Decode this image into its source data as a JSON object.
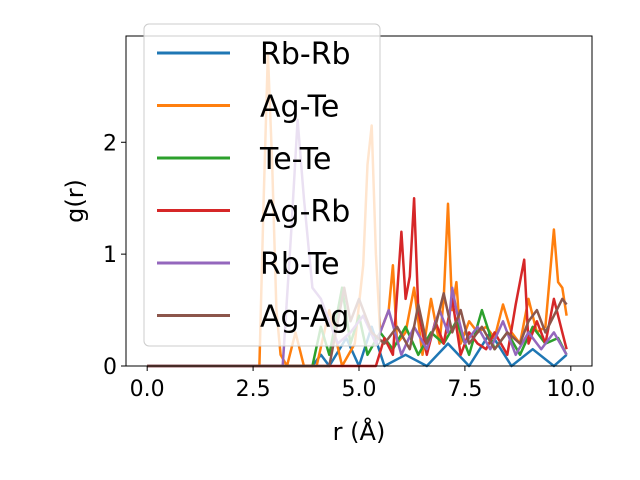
{
  "chart_data": {
    "type": "line",
    "xlabel": "r (Å)",
    "ylabel": "g(r)",
    "xlim": [
      -0.5,
      10.5
    ],
    "ylim": [
      0,
      2.95
    ],
    "xticks": [
      0.0,
      2.5,
      5.0,
      7.5,
      10.0
    ],
    "xtick_labels": [
      "0.0",
      "2.5",
      "5.0",
      "7.5",
      "10.0"
    ],
    "yticks": [
      0,
      1,
      2
    ],
    "ytick_labels": [
      "0",
      "1",
      "2"
    ],
    "grid": false,
    "legend_position": "upper-left",
    "series": [
      {
        "name": "Rb-Rb",
        "color": "#1f77b4",
        "x": [
          0,
          2.6,
          3.9,
          4.1,
          4.3,
          4.7,
          5.0,
          5.3,
          5.6,
          6.1,
          6.6,
          7.1,
          7.6,
          8.1,
          8.6,
          9.1,
          9.6,
          9.9
        ],
        "y": [
          0,
          0,
          0,
          0.1,
          0,
          0.25,
          0,
          0.35,
          0,
          0.1,
          0,
          0.2,
          0,
          0.3,
          0,
          0.15,
          0,
          0.1
        ]
      },
      {
        "name": "Ag-Te",
        "color": "#ff7f0e",
        "x": [
          0,
          2.65,
          2.75,
          2.85,
          2.95,
          3.05,
          3.15,
          3.3,
          3.5,
          3.7,
          4.0,
          4.3,
          4.6,
          4.9,
          5.1,
          5.2,
          5.3,
          5.4,
          5.5,
          5.7,
          5.8,
          5.9,
          6.1,
          6.3,
          6.5,
          6.7,
          6.9,
          7.0,
          7.1,
          7.2,
          7.3,
          7.4,
          7.6,
          7.8,
          8.0,
          8.2,
          8.4,
          8.6,
          8.8,
          9.0,
          9.2,
          9.4,
          9.6,
          9.7,
          9.8,
          9.9
        ],
        "y": [
          0,
          0,
          1.5,
          2.8,
          1.8,
          0.5,
          0.1,
          0,
          0.3,
          0,
          0,
          0.5,
          0,
          0.2,
          0.9,
          1.8,
          2.15,
          1.0,
          0.3,
          0.5,
          0.9,
          0.2,
          0.3,
          0.7,
          0.1,
          0.6,
          0.2,
          0.6,
          1.45,
          0.5,
          0.75,
          0.2,
          0.4,
          0.3,
          0.35,
          0.25,
          0.55,
          0.3,
          0.2,
          0.6,
          0.3,
          0.35,
          1.22,
          0.75,
          0.7,
          0.45
        ]
      },
      {
        "name": "Te-Te",
        "color": "#2ca02c",
        "x": [
          0,
          3.9,
          4.1,
          4.3,
          4.6,
          4.8,
          5.0,
          5.2,
          5.5,
          5.8,
          6.1,
          6.4,
          6.7,
          7.0,
          7.3,
          7.6,
          7.9,
          8.2,
          8.5,
          8.8,
          9.1,
          9.4,
          9.7,
          9.9
        ],
        "y": [
          0,
          0,
          0.35,
          0.1,
          0.7,
          0.2,
          0.45,
          0.1,
          0.3,
          0.15,
          0.35,
          0.1,
          0.3,
          0.2,
          0.4,
          0.1,
          0.5,
          0.15,
          0.3,
          0.1,
          0.35,
          0.2,
          0.25,
          0.1
        ]
      },
      {
        "name": "Ag-Rb",
        "color": "#d62728",
        "x": [
          0,
          5.4,
          5.6,
          5.8,
          6.0,
          6.1,
          6.2,
          6.3,
          6.4,
          6.6,
          6.8,
          7.0,
          7.2,
          7.4,
          7.6,
          7.8,
          8.0,
          8.2,
          8.5,
          8.7,
          8.9,
          9.0,
          9.2,
          9.4,
          9.6,
          9.8,
          9.9
        ],
        "y": [
          0,
          0,
          0.25,
          0.1,
          1.2,
          0.6,
          0.8,
          1.5,
          0.5,
          0.1,
          0.4,
          0.2,
          0.6,
          0.1,
          0.3,
          0.2,
          0.15,
          0.3,
          0.1,
          0.55,
          0.95,
          0.2,
          0.4,
          0.2,
          0.6,
          0.3,
          0.15
        ]
      },
      {
        "name": "Rb-Te",
        "color": "#9467bd",
        "x": [
          0,
          3.2,
          3.4,
          3.55,
          3.7,
          3.9,
          4.1,
          4.3,
          4.5,
          4.8,
          5.1,
          5.4,
          5.7,
          6.0,
          6.3,
          6.6,
          6.9,
          7.1,
          7.2,
          7.3,
          7.5,
          7.8,
          8.1,
          8.4,
          8.7,
          9.0,
          9.3,
          9.6,
          9.9
        ],
        "y": [
          0,
          0,
          1.2,
          2.2,
          1.5,
          0.7,
          0.6,
          0.4,
          0.2,
          0.3,
          0.45,
          0.2,
          0.5,
          0.1,
          0.35,
          0.15,
          0.5,
          0.3,
          0.7,
          0.5,
          0.2,
          0.35,
          0.15,
          0.4,
          0.1,
          0.3,
          0.15,
          0.3,
          0.1
        ]
      },
      {
        "name": "Ag-Ag",
        "color": "#8c564b",
        "x": [
          0,
          4.3,
          4.5,
          4.65,
          4.8,
          5.0,
          5.3,
          5.6,
          5.9,
          6.2,
          6.4,
          6.6,
          6.8,
          7.0,
          7.2,
          7.4,
          7.6,
          7.9,
          8.2,
          8.5,
          8.8,
          9.0,
          9.2,
          9.4,
          9.6,
          9.8,
          9.9
        ],
        "y": [
          0,
          0,
          0.4,
          0.7,
          0.4,
          0.6,
          0.3,
          0.2,
          0.35,
          0.15,
          0.55,
          0.2,
          0.35,
          0.65,
          0.3,
          0.5,
          0.2,
          0.35,
          0.15,
          0.3,
          0.2,
          0.4,
          0.5,
          0.3,
          0.45,
          0.6,
          0.55
        ]
      }
    ]
  }
}
